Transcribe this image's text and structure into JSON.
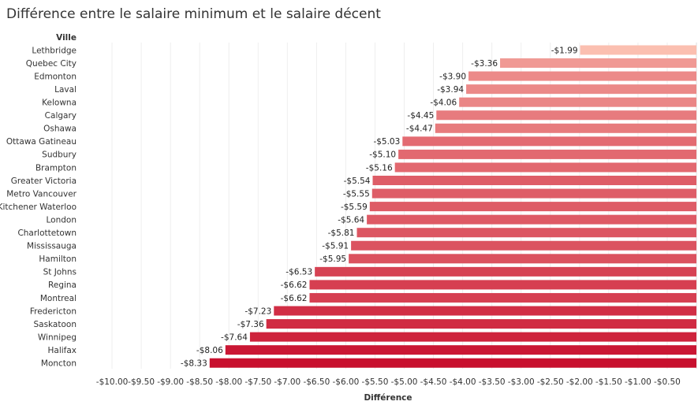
{
  "chart_data": {
    "type": "bar",
    "orientation": "horizontal",
    "title": "Différence entre le salaire minimum et le salaire décent",
    "row_header": "Ville",
    "xlabel": "Différence",
    "xlim": [
      -10.5,
      0
    ],
    "x_ticks": [
      "-$10.00",
      "-$9.50",
      "-$9.00",
      "-$8.50",
      "-$8.00",
      "-$7.50",
      "-$7.00",
      "-$6.50",
      "-$6.00",
      "-$5.50",
      "-$5.00",
      "-$4.50",
      "-$4.00",
      "-$3.50",
      "-$3.00",
      "-$2.50",
      "-$2.00",
      "-$1.50",
      "-$1.00",
      "-$0.50"
    ],
    "x_tick_values": [
      -10,
      -9.5,
      -9,
      -8.5,
      -8,
      -7.5,
      -7,
      -6.5,
      -6,
      -5.5,
      -5,
      -4.5,
      -4,
      -3.5,
      -3,
      -2.5,
      -2,
      -1.5,
      -1,
      -0.5
    ],
    "grid": true,
    "color_scale": {
      "low": "#c8102e",
      "high": "#fbbfb0"
    },
    "categories": [
      "Lethbridge",
      "Quebec City",
      "Edmonton",
      "Laval",
      "Kelowna",
      "Calgary",
      "Oshawa",
      "Ottawa Gatineau",
      "Sudbury",
      "Brampton",
      "Greater Victoria",
      "Metro Vancouver",
      "Kitchener Waterloo",
      "London",
      "Charlottetown",
      "Mississauga",
      "Hamilton",
      "St Johns",
      "Regina",
      "Montreal",
      "Fredericton",
      "Saskatoon",
      "Winnipeg",
      "Halifax",
      "Moncton"
    ],
    "values": [
      -1.99,
      -3.36,
      -3.9,
      -3.94,
      -4.06,
      -4.45,
      -4.47,
      -5.03,
      -5.1,
      -5.16,
      -5.54,
      -5.55,
      -5.59,
      -5.64,
      -5.81,
      -5.91,
      -5.95,
      -6.53,
      -6.62,
      -6.62,
      -7.23,
      -7.36,
      -7.64,
      -8.06,
      -8.33
    ],
    "labels": [
      "-$1.99",
      "-$3.36",
      "-$3.90",
      "-$3.94",
      "-$4.06",
      "-$4.45",
      "-$4.47",
      "-$5.03",
      "-$5.10",
      "-$5.16",
      "-$5.54",
      "-$5.55",
      "-$5.59",
      "-$5.64",
      "-$5.81",
      "-$5.91",
      "-$5.95",
      "-$6.53",
      "-$6.62",
      "-$6.62",
      "-$7.23",
      "-$7.36",
      "-$7.64",
      "-$8.06",
      "-$8.33"
    ]
  }
}
